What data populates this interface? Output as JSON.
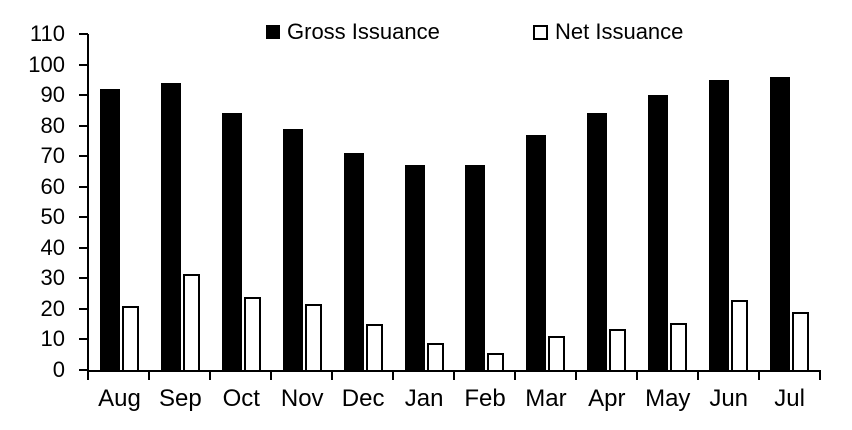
{
  "chart_data": {
    "type": "bar",
    "title": "",
    "categories": [
      "Aug",
      "Sep",
      "Oct",
      "Nov",
      "Dec",
      "Jan",
      "Feb",
      "Mar",
      "Apr",
      "May",
      "Jun",
      "Jul"
    ],
    "series": [
      {
        "name": "Gross Issuance",
        "style": "filled",
        "color": "#000000",
        "values": [
          92,
          94,
          84,
          79,
          71,
          67,
          67,
          77,
          84,
          90,
          95,
          96
        ]
      },
      {
        "name": "Net Issuance",
        "style": "outlined",
        "color": "#ffffff",
        "border_color": "#000000",
        "values": [
          21,
          31.5,
          24,
          21.5,
          15,
          9,
          5.5,
          11,
          13.5,
          15.5,
          23,
          19
        ]
      }
    ],
    "xlabel": "",
    "ylabel": "",
    "ylim": [
      0,
      110
    ],
    "yticks": [
      0,
      10,
      20,
      30,
      40,
      50,
      60,
      70,
      80,
      90,
      100,
      110
    ],
    "grid": false,
    "legend_position": "top-center",
    "axis_color": "#000000",
    "background_color": "#ffffff"
  }
}
